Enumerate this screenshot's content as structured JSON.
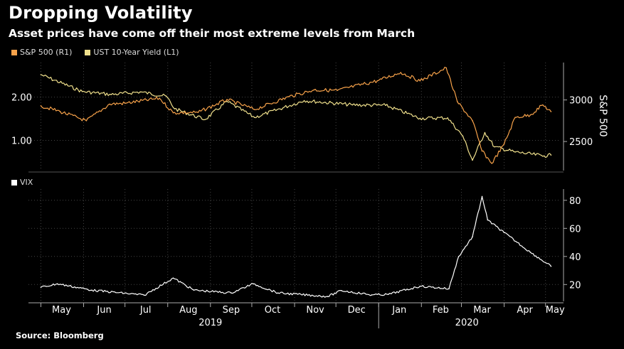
{
  "title": "Dropping Volatility",
  "subtitle": "Asset prices have come off their most extreme levels from March",
  "source": "Source: Bloomberg",
  "colors": {
    "spx": "#f7a24a",
    "ust": "#f0e08c",
    "vix": "#ffffff",
    "background": "#000000"
  },
  "chart_data": [
    {
      "type": "line",
      "legend": [
        {
          "label": "S&P 500 (R1)",
          "color": "#f7a24a"
        },
        {
          "label": "UST 10-Year Yield (L1)",
          "color": "#f0e08c"
        }
      ],
      "left_axis": {
        "ticks": [
          "1.00",
          "2.00"
        ],
        "tick_values": [
          1.0,
          2.0
        ],
        "range": [
          0.3,
          2.8
        ]
      },
      "right_axis": {
        "title": "S&P 500",
        "ticks": [
          "2500",
          "3000"
        ],
        "tick_values": [
          2500,
          3000
        ],
        "range": [
          2150,
          3450
        ]
      },
      "x_months": [
        "May",
        "Jun",
        "Jul",
        "Aug",
        "Sep",
        "Oct",
        "Nov",
        "Dec",
        "Jan",
        "Feb",
        "Mar",
        "Apr",
        "May"
      ],
      "x_years": [
        "2019",
        "2020"
      ],
      "series": [
        {
          "name": "S&P 500 (R1)",
          "axis": "right",
          "color": "#f7a24a",
          "x": [
            "2019-05-01",
            "2019-05-15",
            "2019-06-03",
            "2019-06-20",
            "2019-07-01",
            "2019-07-26",
            "2019-08-05",
            "2019-08-23",
            "2019-09-13",
            "2019-10-03",
            "2019-10-28",
            "2019-11-15",
            "2019-12-02",
            "2019-12-31",
            "2020-01-17",
            "2020-01-31",
            "2020-02-19",
            "2020-02-27",
            "2020-03-09",
            "2020-03-16",
            "2020-03-23",
            "2020-04-01",
            "2020-04-09",
            "2020-04-20",
            "2020-04-29",
            "2020-05-05"
          ],
          "y": [
            2930,
            2860,
            2750,
            2950,
            2960,
            3020,
            2845,
            2850,
            3005,
            2885,
            3040,
            3120,
            3115,
            3230,
            3330,
            3230,
            3386,
            2980,
            2750,
            2385,
            2237,
            2470,
            2790,
            2820,
            2940,
            2860
          ]
        },
        {
          "name": "UST 10-Year Yield (L1)",
          "axis": "left",
          "color": "#f0e08c",
          "x": [
            "2019-05-01",
            "2019-05-31",
            "2019-06-21",
            "2019-07-12",
            "2019-07-31",
            "2019-08-06",
            "2019-08-28",
            "2019-09-13",
            "2019-10-03",
            "2019-11-08",
            "2019-12-13",
            "2020-01-06",
            "2020-01-31",
            "2020-02-20",
            "2020-03-02",
            "2020-03-09",
            "2020-03-18",
            "2020-03-25",
            "2020-04-09",
            "2020-04-30",
            "2020-05-05"
          ],
          "y": [
            2.52,
            2.13,
            2.06,
            2.12,
            2.02,
            1.73,
            1.48,
            1.9,
            1.53,
            1.92,
            1.82,
            1.81,
            1.51,
            1.52,
            1.1,
            0.54,
            1.18,
            0.85,
            0.73,
            0.64,
            0.66
          ]
        }
      ]
    },
    {
      "type": "line",
      "legend": [
        {
          "label": "VIX",
          "color": "#ffffff"
        }
      ],
      "right_axis": {
        "ticks": [
          "20",
          "40",
          "60",
          "80"
        ],
        "tick_values": [
          20,
          40,
          60,
          80
        ],
        "range": [
          8,
          88
        ]
      },
      "x_months": [
        "May",
        "Jun",
        "Jul",
        "Aug",
        "Sep",
        "Oct",
        "Nov",
        "Dec",
        "Jan",
        "Feb",
        "Mar",
        "Apr",
        "May"
      ],
      "x_years": [
        "2019",
        "2020"
      ],
      "series": [
        {
          "name": "VIX",
          "axis": "right",
          "color": "#ffffff",
          "x": [
            "2019-05-01",
            "2019-05-13",
            "2019-06-07",
            "2019-07-15",
            "2019-08-05",
            "2019-08-20",
            "2019-09-16",
            "2019-10-02",
            "2019-10-20",
            "2019-11-25",
            "2019-12-05",
            "2019-12-27",
            "2020-01-08",
            "2020-01-31",
            "2020-02-21",
            "2020-02-28",
            "2020-03-09",
            "2020-03-16",
            "2020-03-20",
            "2020-04-01",
            "2020-04-20",
            "2020-05-05"
          ],
          "y": [
            18,
            20.5,
            16,
            12.4,
            24.6,
            16,
            14,
            20.5,
            14,
            11.5,
            15.7,
            12.6,
            13,
            18.8,
            17,
            40,
            54,
            82.7,
            66,
            57,
            43,
            33
          ]
        }
      ]
    }
  ]
}
